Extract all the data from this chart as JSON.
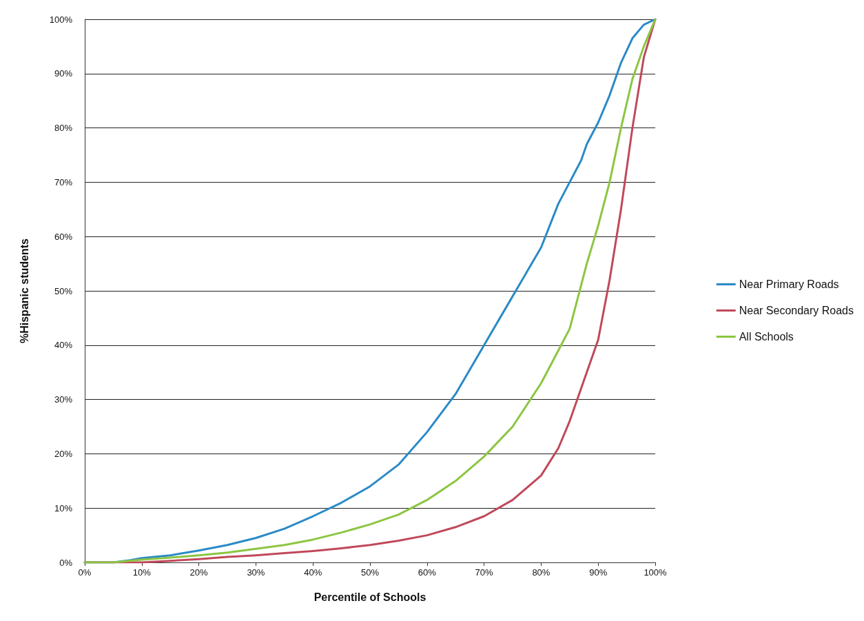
{
  "chart_data": {
    "type": "line",
    "xlabel": "Percentile of Schools",
    "ylabel": "%Hispanic students",
    "xlim": [
      0,
      100
    ],
    "ylim": [
      0,
      100
    ],
    "xticks": [
      {
        "value": 0,
        "label": "0%"
      },
      {
        "value": 10,
        "label": "10%"
      },
      {
        "value": 20,
        "label": "20%"
      },
      {
        "value": 30,
        "label": "30%"
      },
      {
        "value": 40,
        "label": "40%"
      },
      {
        "value": 50,
        "label": "50%"
      },
      {
        "value": 60,
        "label": "60%"
      },
      {
        "value": 70,
        "label": "70%"
      },
      {
        "value": 80,
        "label": "80%"
      },
      {
        "value": 90,
        "label": "90%"
      },
      {
        "value": 100,
        "label": "100%"
      }
    ],
    "yticks": [
      {
        "value": 0,
        "label": "0%"
      },
      {
        "value": 10,
        "label": "10%"
      },
      {
        "value": 20,
        "label": "20%"
      },
      {
        "value": 30,
        "label": "30%"
      },
      {
        "value": 40,
        "label": "40%"
      },
      {
        "value": 50,
        "label": "50%"
      },
      {
        "value": 60,
        "label": "60%"
      },
      {
        "value": 70,
        "label": "70%"
      },
      {
        "value": 80,
        "label": "80%"
      },
      {
        "value": 90,
        "label": "90%"
      },
      {
        "value": 100,
        "label": "100%"
      }
    ],
    "grid": "y",
    "legend": "right",
    "marker": "none",
    "line_style": "solid",
    "series": [
      {
        "name": "Near Primary Roads",
        "color": "#2a8ac6",
        "x": [
          0,
          5,
          8,
          10,
          15,
          20,
          25,
          30,
          35,
          40,
          45,
          50,
          55,
          60,
          65,
          70,
          75,
          80,
          83,
          85,
          87,
          88,
          90,
          92,
          94,
          96,
          98,
          100
        ],
        "values": [
          0,
          0,
          0.4,
          0.8,
          1.3,
          2.2,
          3.2,
          4.5,
          6.2,
          8.5,
          11,
          14,
          18,
          24,
          31,
          40,
          49,
          58,
          66,
          70,
          74,
          77,
          81,
          86,
          92,
          96.5,
          99,
          100
        ]
      },
      {
        "name": "Near Secondary Roads",
        "color": "#c0485a",
        "x": [
          0,
          10,
          15,
          20,
          25,
          30,
          35,
          40,
          45,
          50,
          55,
          60,
          65,
          70,
          75,
          80,
          83,
          85,
          87,
          90,
          92,
          94,
          96,
          98,
          100
        ],
        "values": [
          0,
          0,
          0.3,
          0.6,
          1,
          1.3,
          1.7,
          2.1,
          2.6,
          3.2,
          4,
          5,
          6.5,
          8.5,
          11.5,
          16,
          21,
          26,
          32,
          41,
          52,
          65,
          80,
          93,
          100
        ]
      },
      {
        "name": "All Schools",
        "color": "#8cc541",
        "x": [
          0,
          5,
          10,
          15,
          20,
          25,
          30,
          35,
          40,
          45,
          50,
          55,
          60,
          65,
          70,
          75,
          80,
          83,
          85,
          88,
          90,
          92,
          94,
          96,
          98,
          100
        ],
        "values": [
          0,
          0,
          0.5,
          0.9,
          1.3,
          1.8,
          2.5,
          3.2,
          4.2,
          5.5,
          7,
          8.8,
          11.5,
          15,
          19.5,
          25,
          33,
          39,
          43,
          55,
          62,
          70,
          80,
          89,
          95,
          100
        ]
      }
    ]
  }
}
